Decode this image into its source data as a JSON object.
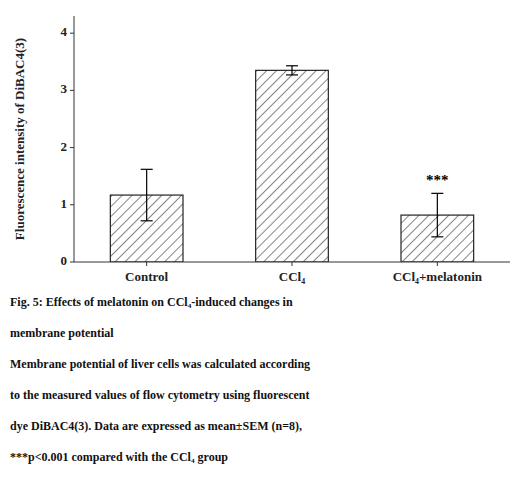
{
  "chart_data": {
    "type": "bar",
    "categories": [
      "Control",
      "CCl₄",
      "CCl₄+melatonin"
    ],
    "values": [
      1.17,
      3.35,
      0.82
    ],
    "errors": [
      0.45,
      0.08,
      0.38
    ],
    "color": "white",
    "ylabel": "Fluorescence intensity of DiBAC4(3)",
    "ylim": [
      0,
      4.3
    ],
    "yticks": [
      0,
      1,
      2,
      3,
      4
    ],
    "grid": false,
    "annotations": [
      {
        "text": "***",
        "category": "CCl₄+melatonin"
      }
    ],
    "caption": [
      "Fig. 5:  Effects of melatonin on CCl₄-induced changes in",
      "membrane potential",
      "Membrane potential of liver cells was calculated according",
      "to the measured values of flow cytometry using fluorescent",
      "dye DiBAC4(3). Data are expressed as mean±SEM (n=8),",
      "***p<0.001 compared with the CCl₄ group"
    ]
  }
}
